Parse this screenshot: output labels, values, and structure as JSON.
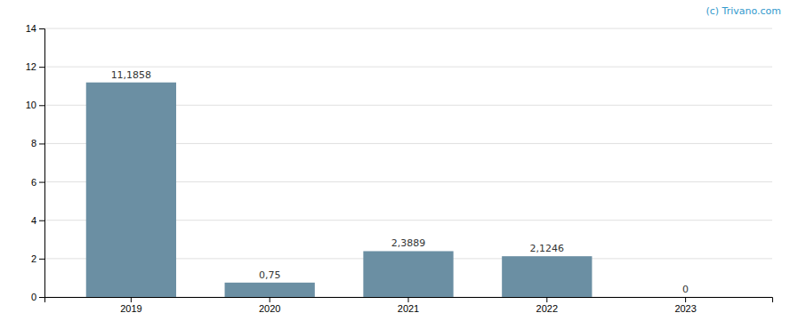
{
  "chart_data": {
    "type": "bar",
    "categories": [
      "2019",
      "2020",
      "2021",
      "2022",
      "2023"
    ],
    "values": [
      11.1858,
      0.75,
      2.3889,
      2.1246,
      0
    ],
    "value_labels": [
      "11,1858",
      "0,75",
      "2,3889",
      "2,1246",
      "0"
    ],
    "data_labels": true,
    "color": "#6b8fa3",
    "ylim": [
      0,
      14
    ],
    "yticks": [
      0,
      2,
      4,
      6,
      8,
      10,
      12,
      14
    ],
    "grid": true,
    "annotations": [
      "(c) Trivano.com"
    ]
  }
}
